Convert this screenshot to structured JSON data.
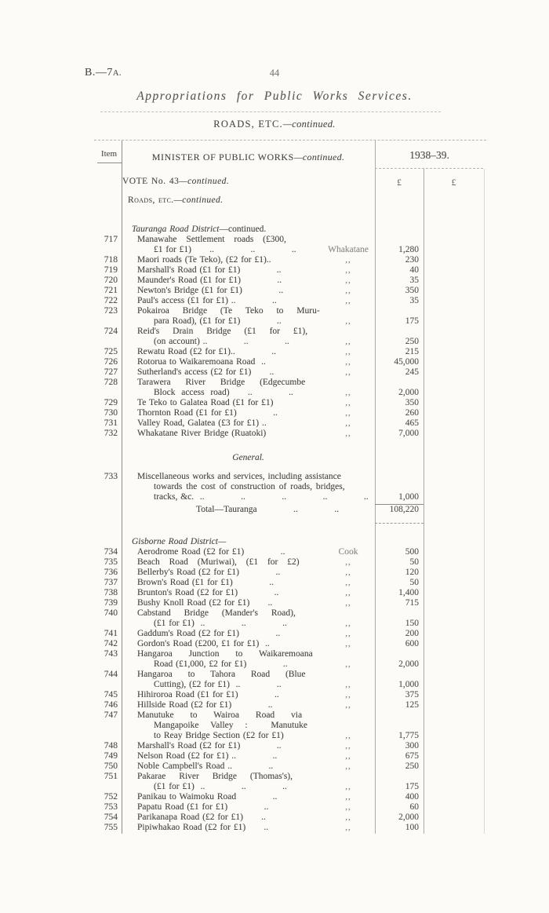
{
  "page": {
    "doc_ref": "B.—7",
    "doc_ref_suffix": "A.",
    "page_number": "44",
    "title": "Appropriations for Public Works Services.",
    "section": {
      "label": "ROADS, ETC.",
      "continued": "—continued."
    }
  },
  "table": {
    "item_header": "Item",
    "minister": {
      "label": "MINISTER OF PUBLIC WORKS",
      "continued": "—continued."
    },
    "year_header": "1938–39.",
    "currency_col1": "£",
    "currency_col2": "£",
    "district_totals": [
      {
        "district": "Tauranga",
        "total": "108,220"
      }
    ],
    "rows": [
      {
        "c": "vote",
        "r1": "VOTE No. 43",
        "e1": "—continued."
      },
      {
        "c": "sp",
        "h": 11
      },
      {
        "c": "roads",
        "r1": "Roads, etc.",
        "e1": "—continued."
      },
      {
        "c": "sp",
        "h": 24
      },
      {
        "c": "district",
        "e1": "Tauranga Road District",
        "r2": "—continued."
      },
      {
        "c": "entry",
        "n": "717",
        "r1": "Manawahe Settlement roads (£300,",
        "w": 9
      },
      {
        "c": "cont",
        "r1": "£1 for £1)      ..            ..            ..",
        "l": "Whakatane",
        "a": "1,280"
      },
      {
        "c": "entry",
        "n": "718",
        "r1": "Maori roads (Te Teko), (£2 for £1)..",
        "l": ",,",
        "a": "230"
      },
      {
        "c": "entry",
        "n": "719",
        "r1": "Marshall's Road (£1 for £1)            ..",
        "l": ",,",
        "a": "40"
      },
      {
        "c": "entry",
        "n": "720",
        "r1": "Maunder's Road (£1 for £1)            ..",
        "l": ",,",
        "a": "35"
      },
      {
        "c": "entry",
        "n": "721",
        "r1": "Newton's Bridge (£1 for £1)            ..",
        "l": ",,",
        "a": "350"
      },
      {
        "c": "entry",
        "n": "722",
        "r1": "Paul's access (£1 for £1) ..            ..",
        "l": ",,",
        "a": "35"
      },
      {
        "c": "entry",
        "n": "723",
        "r1": "Pokairoa Bridge (Te Teko to Muru-",
        "w": 14
      },
      {
        "c": "cont",
        "r1": "para Road), (£1 for £1)            ..",
        "l": ",,",
        "a": "175"
      },
      {
        "c": "entry",
        "n": "724",
        "r1": "Reid's Drain Bridge (£1 for £1),",
        "w": 14
      },
      {
        "c": "cont",
        "r1": "(on account) ..            ..            ..",
        "l": ",,",
        "a": "250"
      },
      {
        "c": "entry",
        "n": "725",
        "r1": "Rewatu Road (£2 for £1)..            ..",
        "l": ",,",
        "a": "215"
      },
      {
        "c": "entry",
        "n": "726",
        "r1": "Rotorua to Waikaremoana Road  ..",
        "l": ",,",
        "a": "45,000"
      },
      {
        "c": "entry",
        "n": "727",
        "r1": "Sutherland's access (£2 for £1)      ..",
        "l": ",,",
        "a": "245"
      },
      {
        "c": "entry",
        "n": "728",
        "r1": "Tarawera River Bridge (Edgecumbe",
        "w": 16
      },
      {
        "c": "cont",
        "r1": "Block  access  road)      ..            ..",
        "l": ",,",
        "a": "2,000"
      },
      {
        "c": "entry",
        "n": "729",
        "r1": "Te Teko to Galatea Road (£1 for £1)",
        "l": ",,",
        "a": "350"
      },
      {
        "c": "entry",
        "n": "730",
        "r1": "Thornton Road (£1 for £1)            ..",
        "l": ",,",
        "a": "260"
      },
      {
        "c": "entry",
        "n": "731",
        "r1": "Valley Road, Galatea (£3 for £1) ..",
        "l": ",,",
        "a": "465"
      },
      {
        "c": "entry",
        "n": "732",
        "r1": "Whakatane River Bridge (Ruatoki)",
        "l": ",,",
        "a": "7,000"
      },
      {
        "c": "sp",
        "h": 18
      },
      {
        "c": "general",
        "e1": "General."
      },
      {
        "c": "sp",
        "h": 11
      },
      {
        "c": "entry",
        "n": "733",
        "r1": "Miscellaneous works and services, including assistance"
      },
      {
        "c": "cont",
        "r1": "towards the cost of construction of roads, bridges,",
        "w": 2
      },
      {
        "c": "cont",
        "r1": "tracks, &c.  ..            ..            ..            ..            ..",
        "a": "1,000"
      },
      {
        "c": "ruletop",
        "h": 3
      },
      {
        "c": "total",
        "r1": "Total—Tauranga            ..            ..            ..",
        "a": "108,220",
        "h": 14
      },
      {
        "c": "ruledbl",
        "h": 11
      },
      {
        "c": "sp",
        "h": 16
      },
      {
        "c": "district",
        "e1": "Gisborne Road District—"
      },
      {
        "c": "entry",
        "n": "734",
        "r1": "Aerodrome Road (£2 for £1)            ..",
        "l": "Cook",
        "a": "500"
      },
      {
        "c": "entry",
        "n": "735",
        "r1": "Beach Road (Muriwai), (£1 for £2)",
        "l": ",,",
        "a": "50",
        "w": 9
      },
      {
        "c": "entry",
        "n": "736",
        "r1": "Bellerby's Road (£2 for £1)            ..",
        "l": ",,",
        "a": "120"
      },
      {
        "c": "entry",
        "n": "737",
        "r1": "Brown's Road (£1 for £1)            ..",
        "l": ",,",
        "a": "50"
      },
      {
        "c": "entry",
        "n": "738",
        "r1": "Brunton's Road (£2 for £1)            ..",
        "l": ",,",
        "a": "1,400"
      },
      {
        "c": "entry",
        "n": "739",
        "r1": "Bushy Knoll Road (£2 for £1)      ..",
        "l": ",,",
        "a": "715"
      },
      {
        "c": "entry",
        "n": "740",
        "r1": "Cabstand Bridge (Mander's Road),",
        "w": 14
      },
      {
        "c": "cont",
        "r1": "(£1 for £1)  ..            ..            ..",
        "l": ",,",
        "a": "150"
      },
      {
        "c": "entry",
        "n": "741",
        "r1": "Gaddum's Road (£2 for £1)            ..",
        "l": ",,",
        "a": "200"
      },
      {
        "c": "entry",
        "n": "742",
        "r1": "Gordon's Road (£200, £1 for £1)  ..",
        "l": ",,",
        "a": "600"
      },
      {
        "c": "entry",
        "n": "743",
        "r1": "Hangaroa Junction to Waikaremoana",
        "w": 18
      },
      {
        "c": "cont",
        "r1": "Road (£1,000, £2 for £1)            ..",
        "l": ",,",
        "a": "2,000"
      },
      {
        "c": "entry",
        "n": "744",
        "r1": "Hangaroa to Tahora Road (Blue",
        "w": 17
      },
      {
        "c": "cont",
        "r1": "Cutting), (£2 for £1)  ..            ..",
        "l": ",,",
        "a": "1,000"
      },
      {
        "c": "entry",
        "n": "745",
        "r1": "Hihiroroa Road (£1 for £1)            ..",
        "l": ",,",
        "a": "375"
      },
      {
        "c": "entry",
        "n": "746",
        "r1": "Hillside Road (£2 for £1)            ..",
        "l": ",,",
        "a": "125"
      },
      {
        "c": "entry",
        "n": "747",
        "r1": "Manutuke to Wairoa Road via",
        "w": 18
      },
      {
        "c": "cont",
        "r1": "Mangapoike Valley :  Manutuke",
        "w": 12
      },
      {
        "c": "cont",
        "r1": "to Reay Bridge Section (£2 for £1)",
        "l": ",,",
        "a": "1,775"
      },
      {
        "c": "entry",
        "n": "748",
        "r1": "Marshall's Road (£2 for £1)            ..",
        "l": ",,",
        "a": "300"
      },
      {
        "c": "entry",
        "n": "749",
        "r1": "Nelson Road (£2 for £1) ..            ..",
        "l": ",,",
        "a": "675"
      },
      {
        "c": "entry",
        "n": "750",
        "r1": "Noble Campbell's Road ..            ..",
        "l": ",,",
        "a": "250"
      },
      {
        "c": "entry",
        "n": "751",
        "r1": "Pakarae River Bridge (Thomas's),",
        "w": 14
      },
      {
        "c": "cont",
        "r1": "(£1 for £1)  ..            ..            ..",
        "l": ",,",
        "a": "175"
      },
      {
        "c": "entry",
        "n": "752",
        "r1": "Panikau to Waimoku Road            ..",
        "l": ",,",
        "a": "400"
      },
      {
        "c": "entry",
        "n": "753",
        "r1": "Papatu Road (£1 for £1)            ..",
        "l": ",,",
        "a": "60"
      },
      {
        "c": "entry",
        "n": "754",
        "r1": "Parikanapa Road (£2 for £1)      ..",
        "l": ",,",
        "a": "2,000"
      },
      {
        "c": "entry",
        "n": "755",
        "r1": "Pipiwhakao Road (£2 for £1)      ..",
        "l": ",,",
        "a": "100"
      }
    ]
  }
}
